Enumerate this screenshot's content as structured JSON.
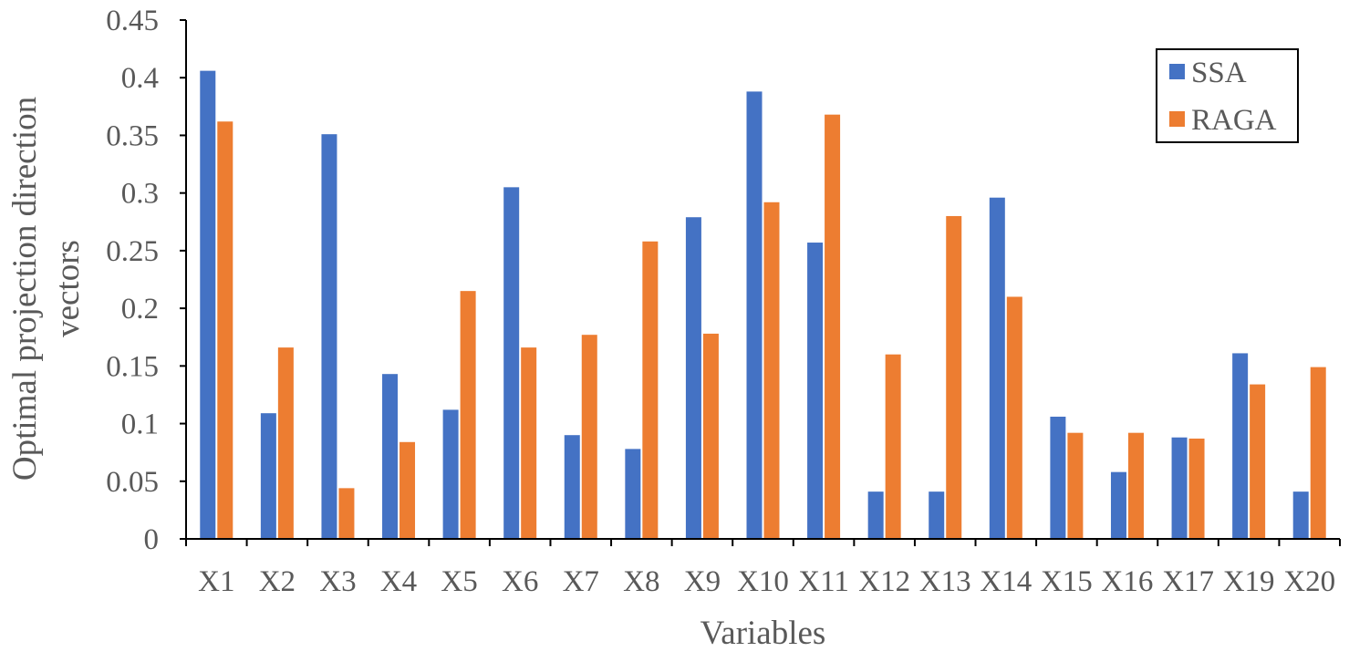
{
  "chart_data": {
    "type": "bar",
    "title": "",
    "xlabel": "Variables",
    "ylabel_lines": [
      "Optimal projection direction",
      "vectors"
    ],
    "ylim": [
      0,
      0.45
    ],
    "yticks": [
      "0",
      "0.05",
      "0.1",
      "0.15",
      "0.2",
      "0.25",
      "0.3",
      "0.35",
      "0.4",
      "0.45"
    ],
    "ytick_values": [
      0,
      0.05,
      0.1,
      0.15,
      0.2,
      0.25,
      0.3,
      0.35,
      0.4,
      0.45
    ],
    "categories": [
      "X1",
      "X2",
      "X3",
      "X4",
      "X5",
      "X6",
      "X7",
      "X8",
      "X9",
      "X10",
      "X11",
      "X12",
      "X13",
      "X14",
      "X15",
      "X16",
      "X17",
      "X19",
      "X20"
    ],
    "series": [
      {
        "name": "SSA",
        "color": "#4472C4",
        "values": [
          0.406,
          0.109,
          0.351,
          0.143,
          0.112,
          0.305,
          0.09,
          0.078,
          0.279,
          0.388,
          0.257,
          0.041,
          0.041,
          0.296,
          0.106,
          0.058,
          0.088,
          0.161,
          0.041
        ]
      },
      {
        "name": "RAGA",
        "color": "#ED7D31",
        "values": [
          0.362,
          0.166,
          0.044,
          0.084,
          0.215,
          0.166,
          0.177,
          0.258,
          0.178,
          0.292,
          0.368,
          0.16,
          0.28,
          0.21,
          0.092,
          0.092,
          0.087,
          0.134,
          0.149
        ]
      }
    ],
    "grid": false,
    "legend_position": "top-right"
  }
}
